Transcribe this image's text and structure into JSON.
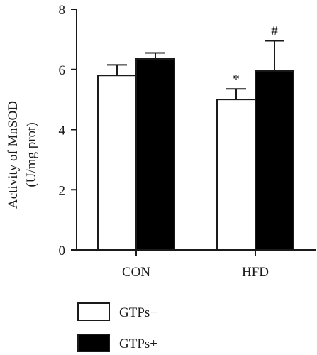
{
  "chart_data": {
    "type": "bar",
    "ylabel_line1": "Activity of MnSOD",
    "ylabel_line2": "(U/mg prot)",
    "xlabel": "",
    "ylim": [
      0,
      8
    ],
    "yticks": [
      0,
      2,
      4,
      6,
      8
    ],
    "categories": [
      "CON",
      "HFD"
    ],
    "series": [
      {
        "name": "GTPs−",
        "fill": "#ffffff",
        "values": [
          5.8,
          5.0
        ],
        "errors": [
          0.35,
          0.35
        ]
      },
      {
        "name": "GTPs+",
        "fill": "#000000",
        "values": [
          6.35,
          5.95
        ],
        "errors": [
          0.2,
          1.0
        ]
      }
    ],
    "annotations": [
      {
        "category": 1,
        "series": 0,
        "text": "*"
      },
      {
        "category": 1,
        "series": 1,
        "text": "#"
      }
    ],
    "legend_position": "bottom-left",
    "grid": false
  }
}
